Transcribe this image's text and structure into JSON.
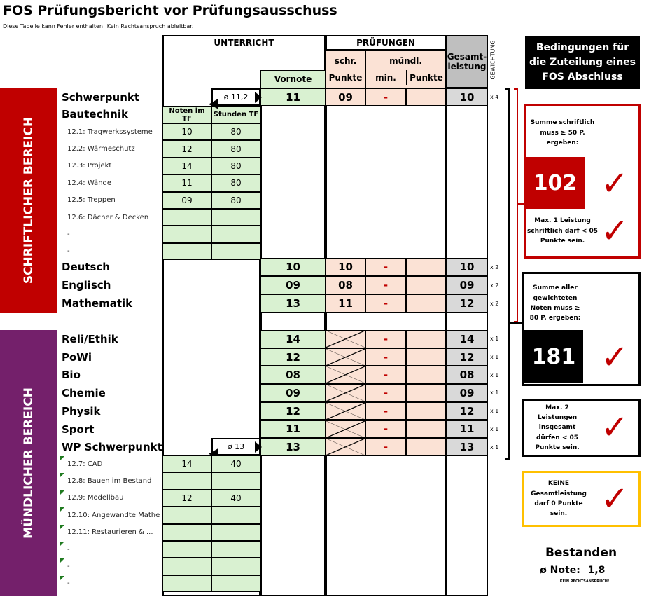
{
  "header": {
    "title": "FOS Prüfungsbericht vor Prüfungsausschuss",
    "subtitle": "Diese Tabelle kann Fehler enthalten! Kein Rechtsanspruch ableitbar."
  },
  "bands": {
    "written": "SCHRIFTLICHER BEREICH",
    "oral": "MÜNDLICHER BEREICH",
    "written_color": "#c00000",
    "oral_color": "#74206b"
  },
  "columns": {
    "unterricht": "UNTERRICHT",
    "pruefungen": "PRÜFUNGEN",
    "schr": "schr.",
    "schr_punkte": "Punkte",
    "muendl": "mündl.",
    "min": "min.",
    "muendl_punkte": "Punkte",
    "gesamt": "Gesamt-leistung",
    "gewichtung": "GEWICHTUNG",
    "vornote": "Vornote",
    "noten_tf": "Noten im TF",
    "stunden_tf": "Stunden TF"
  },
  "schwerpunkt": {
    "label1": "Schwerpunkt",
    "label2": "Bautechnik",
    "avg": "ø 11,2",
    "vornote": "11",
    "schr": "09",
    "min": "-",
    "punkte": "",
    "gesamt": "10",
    "weight": "x 4",
    "fields": [
      {
        "name": "12.1: Tragwerkssysteme",
        "note": "10",
        "hours": "80"
      },
      {
        "name": "12.2: Wärmeschutz",
        "note": "12",
        "hours": "80"
      },
      {
        "name": "12.3: Projekt",
        "note": "14",
        "hours": "80"
      },
      {
        "name": "12.4: Wände",
        "note": "11",
        "hours": "80"
      },
      {
        "name": "12.5: Treppen",
        "note": "09",
        "hours": "80"
      },
      {
        "name": "12.6: Dächer & Decken",
        "note": "",
        "hours": ""
      },
      {
        "name": "-",
        "note": "",
        "hours": ""
      },
      {
        "name": "-",
        "note": "",
        "hours": ""
      }
    ]
  },
  "written": [
    {
      "name": "Deutsch",
      "vornote": "10",
      "schr": "10",
      "min": "-",
      "punkte": "",
      "gesamt": "10",
      "weight": "x 2"
    },
    {
      "name": "Englisch",
      "vornote": "09",
      "schr": "08",
      "min": "-",
      "punkte": "",
      "gesamt": "09",
      "weight": "x 2"
    },
    {
      "name": "Mathematik",
      "vornote": "13",
      "schr": "11",
      "min": "-",
      "punkte": "",
      "gesamt": "12",
      "weight": "x 2"
    }
  ],
  "oral": [
    {
      "name": "Reli/Ethik",
      "vornote": "14",
      "min": "-",
      "punkte": "",
      "gesamt": "14",
      "weight": "x 1"
    },
    {
      "name": "PoWi",
      "vornote": "12",
      "min": "-",
      "punkte": "",
      "gesamt": "12",
      "weight": "x 1"
    },
    {
      "name": "Bio",
      "vornote": "08",
      "min": "-",
      "punkte": "",
      "gesamt": "08",
      "weight": "x 1"
    },
    {
      "name": "Chemie",
      "vornote": "09",
      "min": "-",
      "punkte": "",
      "gesamt": "09",
      "weight": "x 1"
    },
    {
      "name": "Physik",
      "vornote": "12",
      "min": "-",
      "punkte": "",
      "gesamt": "12",
      "weight": "x 1"
    },
    {
      "name": "Sport",
      "vornote": "11",
      "min": "-",
      "punkte": "",
      "gesamt": "11",
      "weight": "x 1"
    },
    {
      "name": "WP Schwerpunkt",
      "vornote": "13",
      "min": "-",
      "punkte": "",
      "gesamt": "13",
      "weight": "x 1"
    }
  ],
  "wp": {
    "avg": "ø 13",
    "fields": [
      {
        "name": "12.7: CAD",
        "note": "14",
        "hours": "40"
      },
      {
        "name": "12.8: Bauen im Bestand",
        "note": "",
        "hours": ""
      },
      {
        "name": "12.9: Modellbau",
        "note": "12",
        "hours": "40"
      },
      {
        "name": "12.10: Angewandte Mathe",
        "note": "",
        "hours": ""
      },
      {
        "name": "12.11: Restaurieren & ...",
        "note": "",
        "hours": ""
      },
      {
        "name": "-",
        "note": "",
        "hours": ""
      },
      {
        "name": "-",
        "note": "",
        "hours": ""
      },
      {
        "name": "-",
        "note": "",
        "hours": ""
      }
    ]
  },
  "conditions": {
    "title": "Bedingungen für die Zuteilung eines FOS Abschluss",
    "c1_text": "Summe schriftlich muss ≥ 50 P. ergeben:",
    "c1_value": "102",
    "c1_status": "check",
    "c2_text": "Max. 1 Leistung schriftlich darf < 05 Punkte sein.",
    "c2_status": "check",
    "c3_text": "Summe aller gewichteten Noten muss ≥ 80 P. ergeben:",
    "c3_value": "181",
    "c3_status": "check",
    "c4_text": "Max. 2 Leistungen insgesamt dürfen < 05 Punkte sein.",
    "c4_status": "check",
    "c5_text": "KEINE Gesamtleistung darf 0 Punkte sein.",
    "c5_status": "check",
    "check_glyph": "✓",
    "red": "#c00000",
    "yellow": "#ffc000"
  },
  "result": {
    "status": "Bestanden",
    "note_label": "ø Note:",
    "note": "1,8",
    "disclaimer": "KEIN RECHTSANSPRUCH!"
  }
}
